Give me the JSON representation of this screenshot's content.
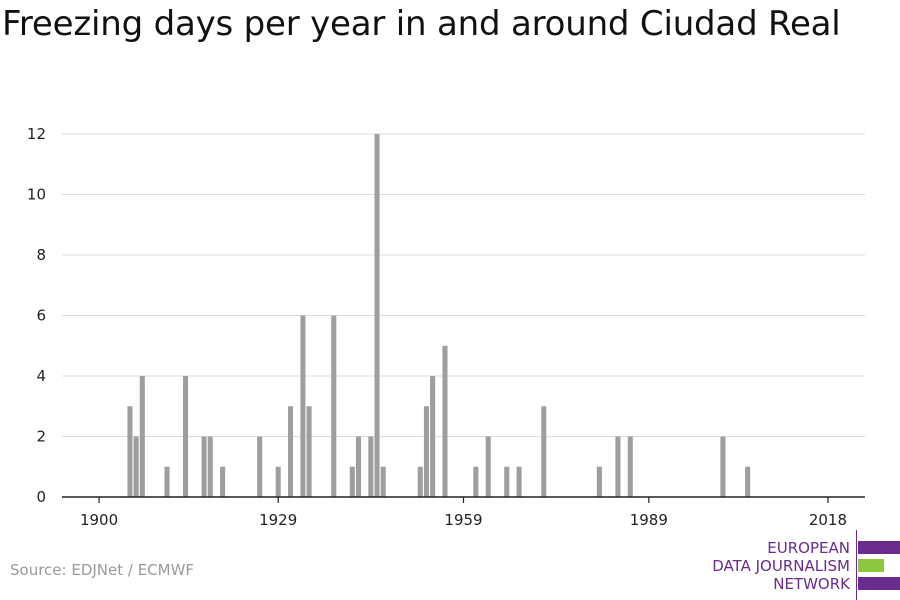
{
  "title": "Freezing days per year in and around Ciudad Real",
  "source": "Source: EDJNet / ECMWF",
  "logo": {
    "lines": [
      "EUROPEAN",
      "DATA JOURNALISM",
      "NETWORK"
    ],
    "colors": {
      "purple": "#6a2c8c",
      "green": "#8dc63f"
    }
  },
  "chart_data": {
    "type": "bar",
    "x_tick_labels": [
      "1900",
      "1929",
      "1959",
      "1989",
      "2018"
    ],
    "x_ticks": [
      1900,
      1929,
      1959,
      1989,
      2018
    ],
    "y_ticks": [
      0,
      2,
      4,
      6,
      8,
      10,
      12
    ],
    "xlim": [
      1894,
      2024
    ],
    "ylim": [
      0,
      12
    ],
    "bar_color": "#9e9e9e",
    "grid": true,
    "x": [
      1905,
      1906,
      1907,
      1911,
      1914,
      1917,
      1918,
      1920,
      1926,
      1929,
      1931,
      1933,
      1934,
      1938,
      1941,
      1942,
      1944,
      1945,
      1946,
      1952,
      1953,
      1954,
      1956,
      1961,
      1963,
      1966,
      1968,
      1972,
      1981,
      1984,
      1986,
      2001,
      2005
    ],
    "values": [
      3,
      2,
      4,
      1,
      4,
      2,
      2,
      1,
      2,
      1,
      3,
      6,
      3,
      6,
      1,
      2,
      2,
      12,
      1,
      1,
      3,
      4,
      5,
      1,
      2,
      1,
      1,
      3,
      1,
      2,
      2,
      2,
      1
    ]
  }
}
